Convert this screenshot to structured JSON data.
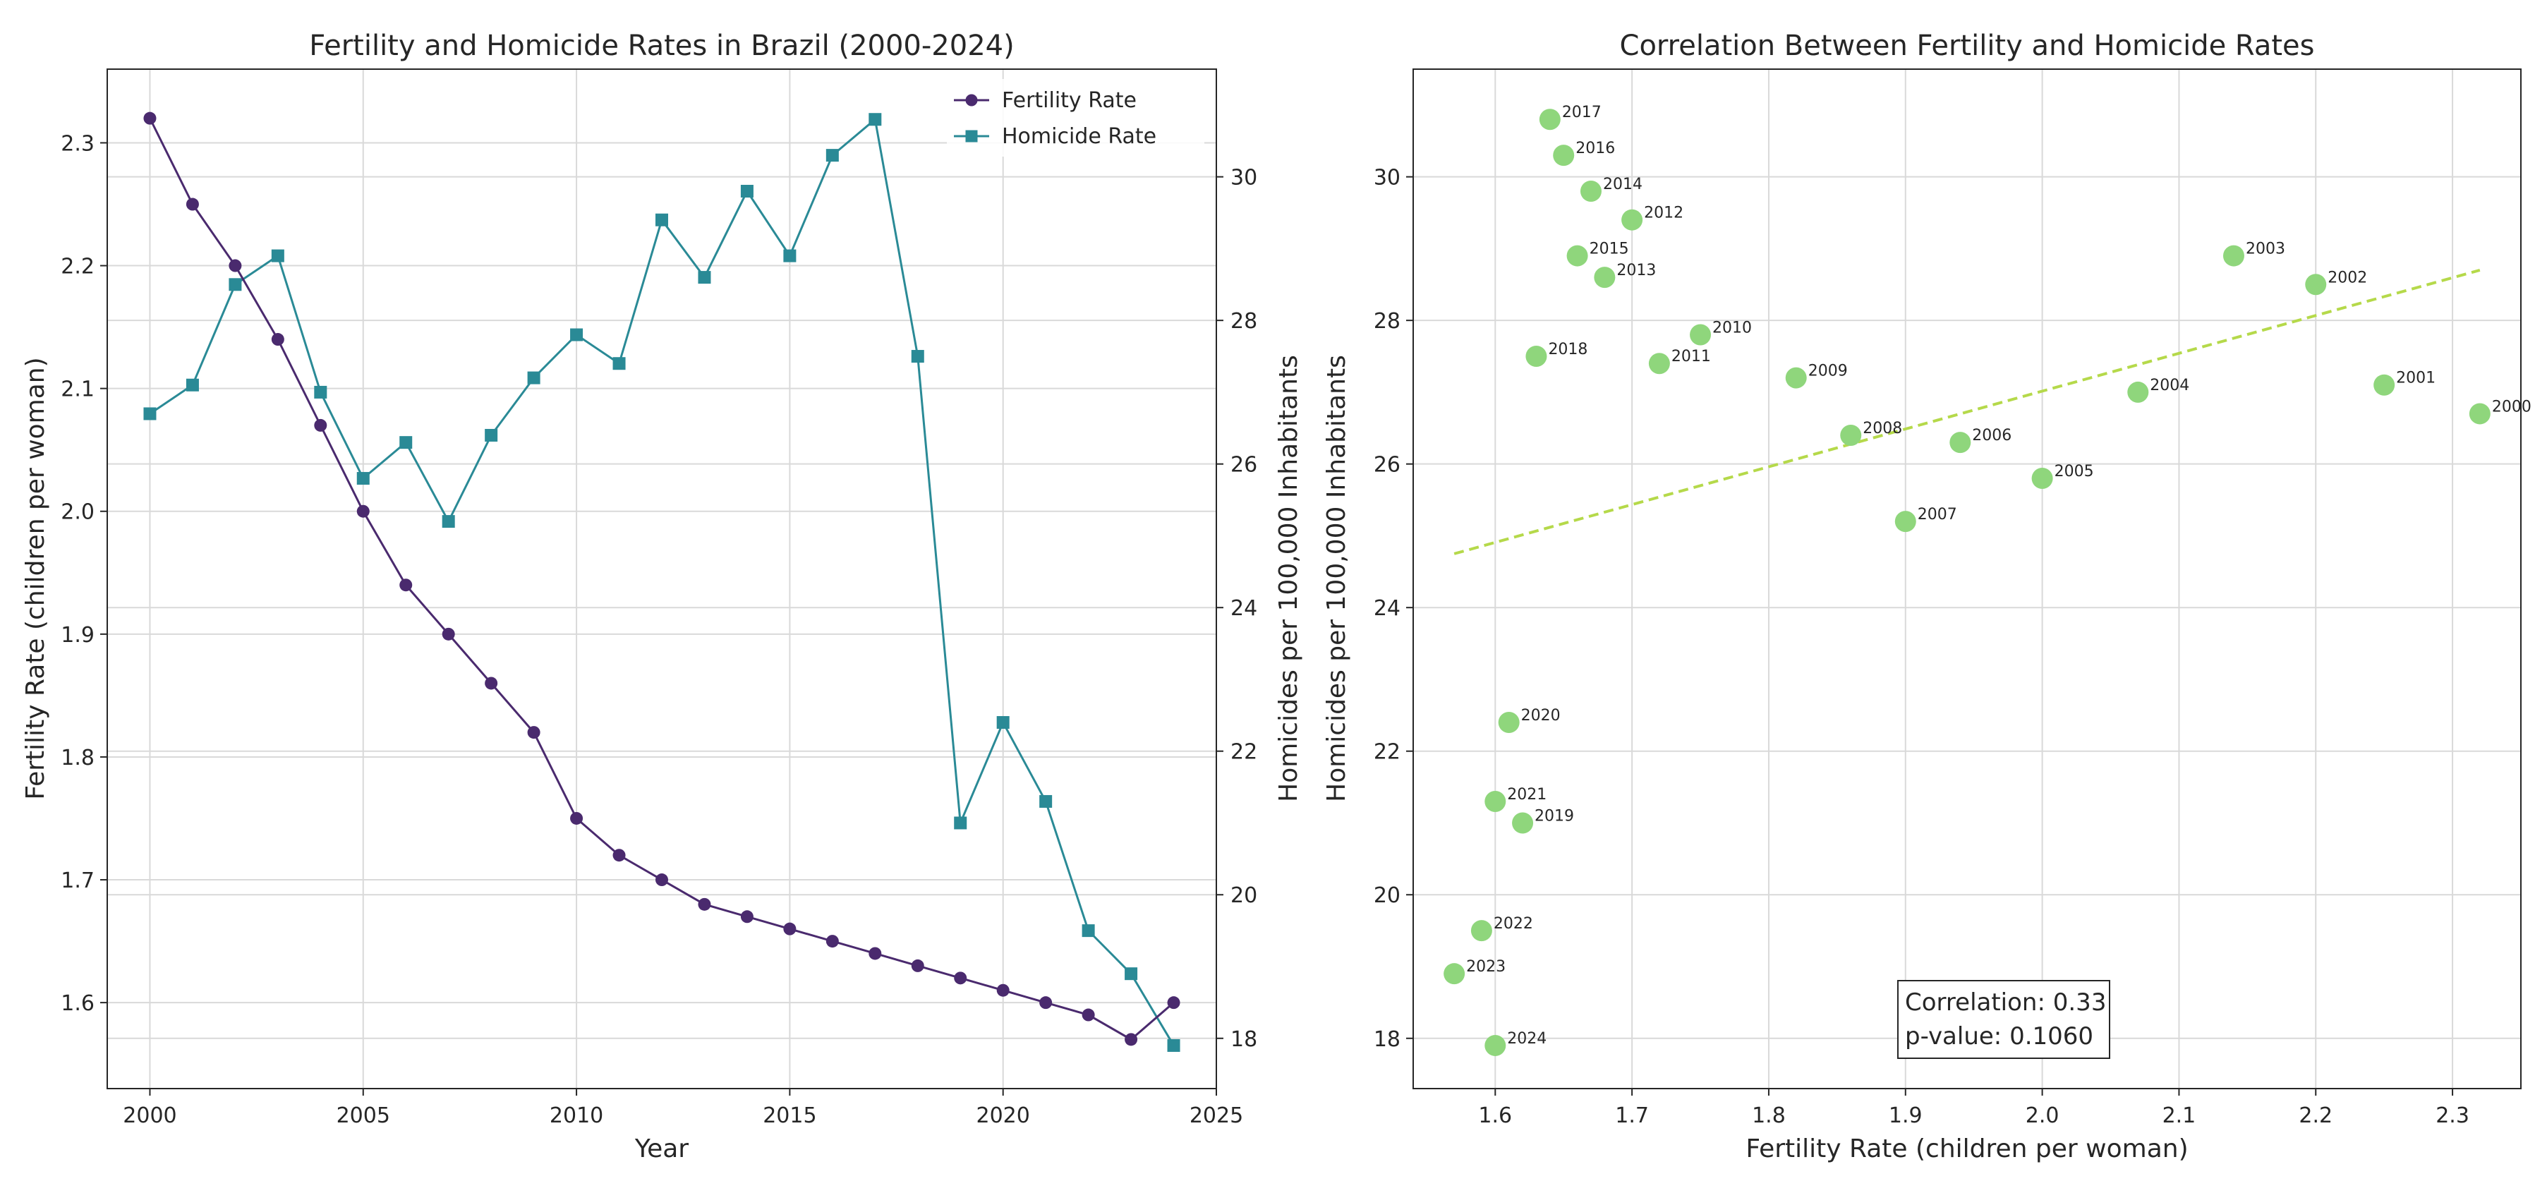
{
  "colors": {
    "fertility": "#4a2a6e",
    "homicide": "#2a8a96",
    "scatter_points": "#8fd67c",
    "trend_line": "#b5d94a",
    "fertility_axis_label": "#4a2a6e",
    "homicide_axis_label": "#2a8a96"
  },
  "chart_data": [
    {
      "type": "line",
      "title": "Fertility and Homicide Rates in Brazil (2000-2024)",
      "xlabel": "Year",
      "ylabel": "Fertility Rate (children per woman)",
      "y2label": "Homicides per 100,000 Inhabitants",
      "xlim": [
        1999,
        2025
      ],
      "ylim": [
        1.53,
        2.36
      ],
      "y2lim": [
        17.3,
        31.5
      ],
      "xticks": [
        2000,
        2005,
        2010,
        2015,
        2020,
        2025
      ],
      "yticks": [
        1.6,
        1.7,
        1.8,
        1.9,
        2.0,
        2.1,
        2.2,
        2.3
      ],
      "ytick_labels": [
        "1.6",
        "1.7",
        "1.8",
        "1.9",
        "2.0",
        "2.1",
        "2.2",
        "2.3"
      ],
      "y2ticks": [
        18,
        20,
        22,
        24,
        26,
        28,
        30
      ],
      "legend": "top-right",
      "x": [
        2000,
        2001,
        2002,
        2003,
        2004,
        2005,
        2006,
        2007,
        2008,
        2009,
        2010,
        2011,
        2012,
        2013,
        2014,
        2015,
        2016,
        2017,
        2018,
        2019,
        2020,
        2021,
        2022,
        2023,
        2024
      ],
      "series": [
        {
          "name": "Fertility Rate",
          "axis": "left",
          "marker": "circle",
          "values": [
            2.32,
            2.25,
            2.2,
            2.14,
            2.07,
            2.0,
            1.94,
            1.9,
            1.86,
            1.82,
            1.75,
            1.72,
            1.7,
            1.68,
            1.67,
            1.66,
            1.65,
            1.64,
            1.63,
            1.62,
            1.61,
            1.6,
            1.59,
            1.57,
            1.6
          ]
        },
        {
          "name": "Homicide Rate",
          "axis": "right",
          "marker": "square",
          "values": [
            26.7,
            27.1,
            28.5,
            28.9,
            27.0,
            25.8,
            26.3,
            25.2,
            26.4,
            27.2,
            27.8,
            27.4,
            29.4,
            28.6,
            29.8,
            28.9,
            30.3,
            30.8,
            27.5,
            21.0,
            22.4,
            21.3,
            19.5,
            18.9,
            17.9
          ]
        }
      ]
    },
    {
      "type": "scatter",
      "title": "Correlation Between Fertility and Homicide Rates",
      "xlabel": "Fertility Rate (children per woman)",
      "ylabel": "Homicides per 100,000 Inhabitants",
      "xlim": [
        1.54,
        2.35
      ],
      "ylim": [
        17.3,
        31.5
      ],
      "xticks": [
        1.6,
        1.7,
        1.8,
        1.9,
        2.0,
        2.1,
        2.2,
        2.3
      ],
      "xtick_labels": [
        "1.6",
        "1.7",
        "1.8",
        "1.9",
        "2.0",
        "2.1",
        "2.2",
        "2.3"
      ],
      "yticks": [
        18,
        20,
        22,
        24,
        26,
        28,
        30
      ],
      "points": [
        {
          "label": "2000",
          "x": 2.32,
          "y": 26.7
        },
        {
          "label": "2001",
          "x": 2.25,
          "y": 27.1
        },
        {
          "label": "2002",
          "x": 2.2,
          "y": 28.5
        },
        {
          "label": "2003",
          "x": 2.14,
          "y": 28.9
        },
        {
          "label": "2004",
          "x": 2.07,
          "y": 27.0
        },
        {
          "label": "2005",
          "x": 2.0,
          "y": 25.8
        },
        {
          "label": "2006",
          "x": 1.94,
          "y": 26.3
        },
        {
          "label": "2007",
          "x": 1.9,
          "y": 25.2
        },
        {
          "label": "2008",
          "x": 1.86,
          "y": 26.4
        },
        {
          "label": "2009",
          "x": 1.82,
          "y": 27.2
        },
        {
          "label": "2010",
          "x": 1.75,
          "y": 27.8
        },
        {
          "label": "2011",
          "x": 1.72,
          "y": 27.4
        },
        {
          "label": "2012",
          "x": 1.7,
          "y": 29.4
        },
        {
          "label": "2013",
          "x": 1.68,
          "y": 28.6
        },
        {
          "label": "2014",
          "x": 1.67,
          "y": 29.8
        },
        {
          "label": "2015",
          "x": 1.66,
          "y": 28.9
        },
        {
          "label": "2016",
          "x": 1.65,
          "y": 30.3
        },
        {
          "label": "2017",
          "x": 1.64,
          "y": 30.8
        },
        {
          "label": "2018",
          "x": 1.63,
          "y": 27.5
        },
        {
          "label": "2019",
          "x": 1.62,
          "y": 21.0
        },
        {
          "label": "2020",
          "x": 1.61,
          "y": 22.4
        },
        {
          "label": "2021",
          "x": 1.6,
          "y": 21.3
        },
        {
          "label": "2022",
          "x": 1.59,
          "y": 19.5
        },
        {
          "label": "2023",
          "x": 1.57,
          "y": 18.9
        },
        {
          "label": "2024",
          "x": 1.6,
          "y": 17.9
        }
      ],
      "trend_line": {
        "x": [
          1.57,
          2.32
        ],
        "y": [
          24.75,
          28.7
        ]
      },
      "annotation": {
        "line1": "Correlation: 0.33",
        "line2": "p-value: 0.1060"
      }
    }
  ]
}
